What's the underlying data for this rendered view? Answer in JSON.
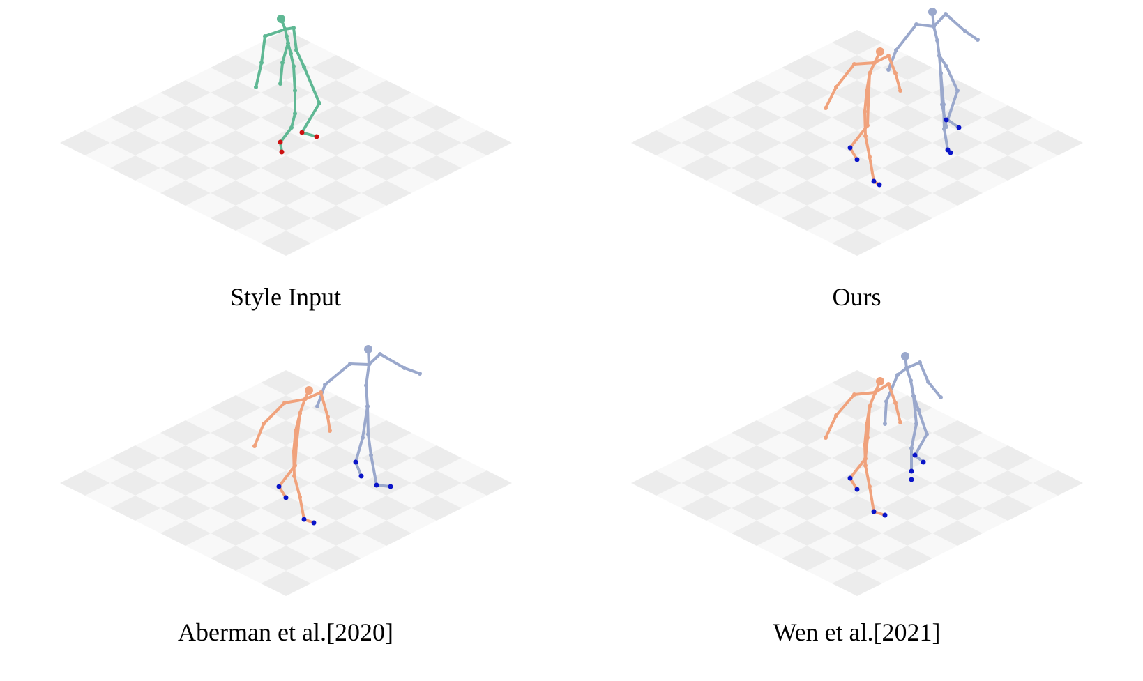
{
  "panels": [
    {
      "caption": "Style Input",
      "figures": [
        {
          "name": "style",
          "color": "#5fb894",
          "foot_color": "#cc1111"
        }
      ]
    },
    {
      "caption": "Ours",
      "figures": [
        {
          "name": "content",
          "color": "#f0a27c"
        },
        {
          "name": "output",
          "color": "#9aa8cc"
        }
      ],
      "foot_color": "#0a14c8"
    },
    {
      "caption": "Aberman et al.[2020]",
      "figures": [
        {
          "name": "content",
          "color": "#f0a27c"
        },
        {
          "name": "output",
          "color": "#9aa8cc"
        }
      ],
      "foot_color": "#0a14c8"
    },
    {
      "caption": "Wen et al.[2021]",
      "figures": [
        {
          "name": "content",
          "color": "#f0a27c"
        },
        {
          "name": "output",
          "color": "#9aa8cc"
        }
      ],
      "foot_color": "#0a14c8"
    }
  ],
  "floor": {
    "tile_color": "#ececec",
    "light_tile_color": "#f8f8f8"
  }
}
